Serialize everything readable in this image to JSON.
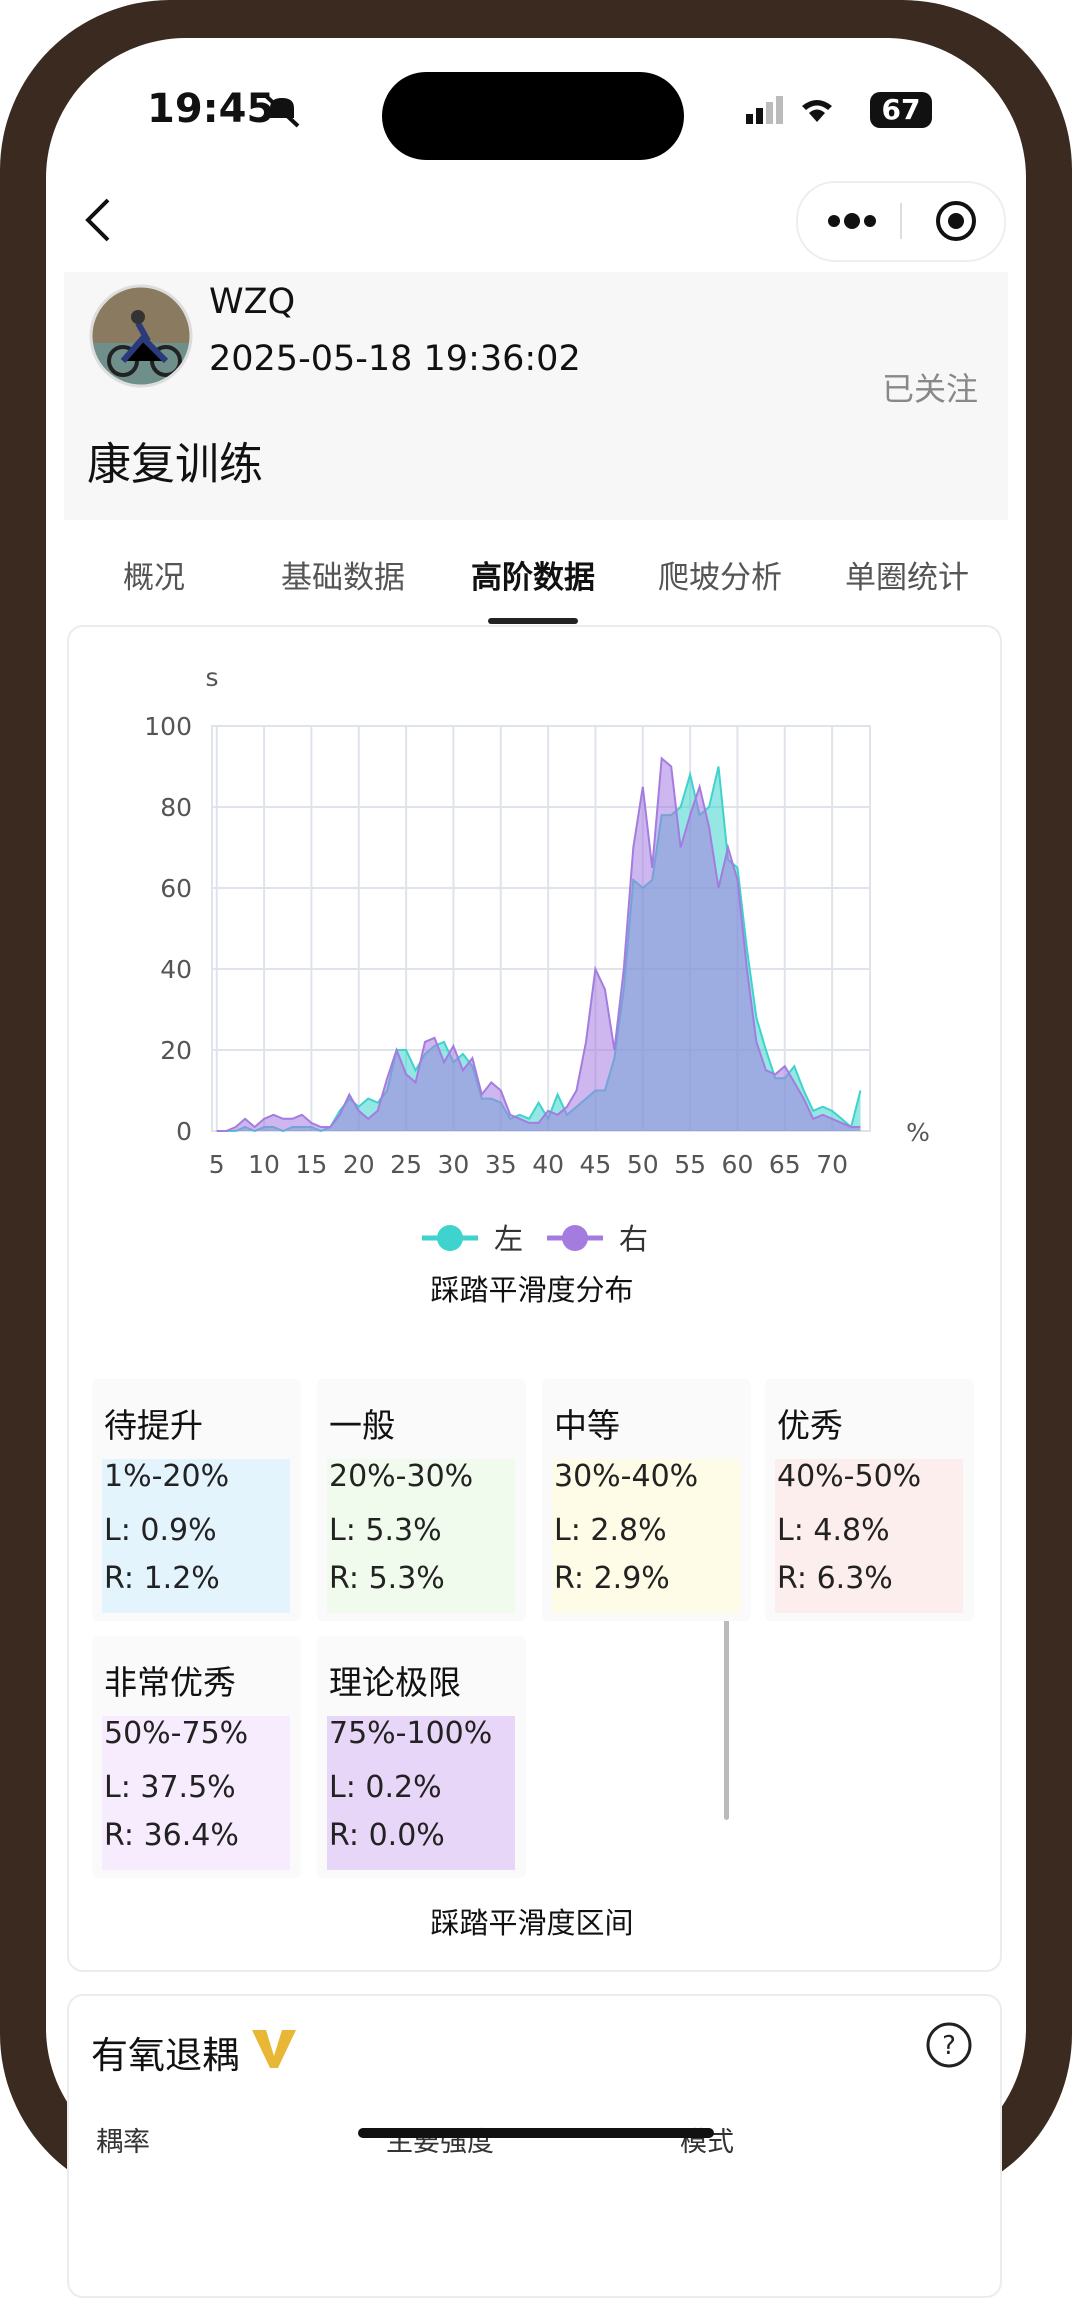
{
  "status_bar": {
    "time": "19:45",
    "battery": "67"
  },
  "header": {
    "user": "WZQ",
    "datetime": "2025-05-18 19:36:02",
    "follow": "已关注",
    "title": "康复训练"
  },
  "tabs": {
    "items": [
      "概况",
      "基础数据",
      "高阶数据",
      "爬坡分析",
      "单圈统计"
    ],
    "active": 2
  },
  "chart_data": {
    "type": "area",
    "title": "踩踏平滑度分布",
    "y_unit": "s",
    "x_unit": "%",
    "x": [
      5,
      6,
      7,
      8,
      9,
      10,
      11,
      12,
      13,
      14,
      15,
      16,
      17,
      18,
      19,
      20,
      21,
      22,
      23,
      24,
      25,
      26,
      27,
      28,
      29,
      30,
      31,
      32,
      33,
      34,
      35,
      36,
      37,
      38,
      39,
      40,
      41,
      42,
      43,
      44,
      45,
      46,
      47,
      48,
      49,
      50,
      51,
      52,
      53,
      54,
      55,
      56,
      57,
      58,
      59,
      60,
      61,
      62,
      63,
      64,
      65,
      66,
      67,
      68,
      69,
      70,
      71,
      72,
      73
    ],
    "series": [
      {
        "name": "左",
        "color": "#3ed3cc",
        "values": [
          0,
          0,
          0,
          1,
          0,
          1,
          1,
          0,
          1,
          1,
          1,
          0,
          1,
          5,
          8,
          6,
          8,
          7,
          10,
          20,
          20,
          15,
          19,
          21,
          22,
          17,
          19,
          16,
          8,
          8,
          7,
          3,
          4,
          3,
          7,
          3,
          9,
          4,
          6,
          8,
          10,
          10,
          18,
          35,
          62,
          60,
          62,
          78,
          78,
          80,
          88,
          78,
          80,
          90,
          67,
          65,
          45,
          28,
          20,
          13,
          13,
          16,
          10,
          5,
          6,
          5,
          3,
          1,
          10
        ]
      },
      {
        "name": "右",
        "color": "#a47ce0",
        "values": [
          0,
          0,
          1,
          3,
          1,
          3,
          4,
          3,
          3,
          4,
          2,
          1,
          1,
          4,
          9,
          5,
          3,
          5,
          13,
          20,
          14,
          12,
          22,
          23,
          17,
          21,
          15,
          18,
          9,
          12,
          10,
          4,
          3,
          2,
          2,
          5,
          4,
          6,
          10,
          22,
          40,
          35,
          20,
          40,
          70,
          85,
          65,
          92,
          90,
          70,
          78,
          85,
          75,
          60,
          70,
          62,
          40,
          22,
          15,
          14,
          16,
          12,
          8,
          3,
          4,
          3,
          2,
          1,
          1
        ]
      }
    ],
    "xlim": [
      4.5,
      74
    ],
    "ylim": [
      0,
      100
    ],
    "xticks": [
      5,
      10,
      15,
      20,
      25,
      30,
      35,
      40,
      45,
      50,
      55,
      60,
      65,
      70
    ],
    "yticks": [
      0,
      20,
      40,
      60,
      80,
      100
    ],
    "grid": true
  },
  "ranges": {
    "title": "踩踏平滑度区间",
    "items": [
      {
        "name": "待提升",
        "range": "1%-20%",
        "left": "L: 0.9%",
        "right": "R: 1.2%",
        "color": "#e3f4fd"
      },
      {
        "name": "一般",
        "range": "20%-30%",
        "left": "L: 5.3%",
        "right": "R: 5.3%",
        "color": "#f1fbed"
      },
      {
        "name": "中等",
        "range": "30%-40%",
        "left": "L: 2.8%",
        "right": "R: 2.9%",
        "color": "#fefbe6"
      },
      {
        "name": "优秀",
        "range": "40%-50%",
        "left": "L: 4.8%",
        "right": "R: 6.3%",
        "color": "#fdeeee"
      },
      {
        "name": "非常优秀",
        "range": "50%-75%",
        "left": "L: 37.5%",
        "right": "R: 36.4%",
        "color": "#f6ecfd"
      },
      {
        "name": "理论极限",
        "range": "75%-100%",
        "left": "L: 0.2%",
        "right": "R: 0.0%",
        "color": "#e8d6f8"
      }
    ]
  },
  "next_card": {
    "title": "有氧退耦",
    "columns": [
      "耦率",
      "主要强度",
      "模式"
    ]
  }
}
